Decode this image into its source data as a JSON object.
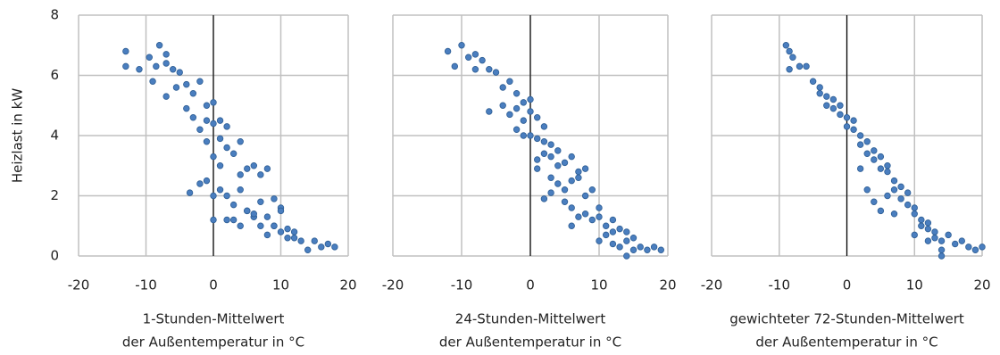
{
  "chart_data": [
    {
      "type": "scatter",
      "ylabel": "Heizlast in kW",
      "xlabel": [
        "1-Stunden-Mittelwert",
        "der Außentemperatur in °C"
      ],
      "color": "#4a7ebf",
      "ytick_labels": true,
      "xlim": [
        -20,
        20
      ],
      "ylim": [
        0,
        8
      ],
      "xticks": [
        -20,
        -10,
        0,
        10,
        20
      ],
      "yticks": [
        0,
        2,
        4,
        6,
        8
      ],
      "grid": true,
      "x": [
        -13,
        -13,
        -11,
        -9.5,
        -8,
        -7,
        -8.5,
        -7,
        -9,
        -6,
        -5,
        -5.5,
        -7,
        -4,
        -3,
        -2,
        -4,
        -3,
        -1,
        -2,
        -1,
        0,
        -1,
        0,
        1,
        2,
        1,
        0,
        -3.5,
        -2,
        -1,
        0,
        1,
        2,
        3,
        4,
        2,
        3,
        5,
        6,
        4,
        5,
        7,
        8,
        3,
        4,
        6,
        7,
        9,
        10,
        2,
        1,
        0,
        5,
        6,
        8,
        9,
        10,
        11,
        12,
        7,
        8,
        10,
        11,
        13,
        14,
        15,
        16,
        17,
        18,
        12,
        9,
        6,
        4
      ],
      "values": [
        6.8,
        6.3,
        6.2,
        6.6,
        7.0,
        6.7,
        6.3,
        6.4,
        5.8,
        6.2,
        6.1,
        5.6,
        5.3,
        5.7,
        5.4,
        5.8,
        4.9,
        4.6,
        4.5,
        4.2,
        5.0,
        5.1,
        3.8,
        4.4,
        4.5,
        4.3,
        3.9,
        3.3,
        2.1,
        2.4,
        2.5,
        2.0,
        2.2,
        3.6,
        3.4,
        3.8,
        2.0,
        1.7,
        2.9,
        3.0,
        2.2,
        1.5,
        2.7,
        2.9,
        1.2,
        1.0,
        1.3,
        1.8,
        1.9,
        1.6,
        1.2,
        3.0,
        1.2,
        1.5,
        1.3,
        1.3,
        1.0,
        1.5,
        0.9,
        0.8,
        1.0,
        0.7,
        0.8,
        0.6,
        0.5,
        0.2,
        0.5,
        0.3,
        0.4,
        0.3,
        0.6,
        1.0,
        1.4,
        2.7
      ]
    },
    {
      "type": "scatter",
      "xlabel": [
        "24-Stunden-Mittelwert",
        "der Außentemperatur in °C"
      ],
      "color": "#4a7ebf",
      "ytick_labels": false,
      "xlim": [
        -20,
        20
      ],
      "ylim": [
        0,
        8
      ],
      "xticks": [
        -20,
        -10,
        0,
        10,
        20
      ],
      "yticks": [
        0,
        2,
        4,
        6,
        8
      ],
      "grid": true,
      "x": [
        -12,
        -11,
        -10,
        -9,
        -8,
        -7,
        -6,
        -8,
        -5,
        -4,
        -3,
        -2,
        -6,
        -4,
        -3,
        -2,
        -1,
        0,
        -1,
        0,
        1,
        2,
        -2,
        -1,
        0,
        1,
        2,
        3,
        4,
        1,
        2,
        3,
        4,
        5,
        6,
        7,
        3,
        4,
        5,
        6,
        7,
        8,
        2,
        3,
        5,
        6,
        8,
        9,
        10,
        7,
        8,
        9,
        10,
        11,
        12,
        11,
        12,
        13,
        14,
        15,
        10,
        12,
        13,
        14,
        15,
        16,
        17,
        18,
        19,
        14,
        1,
        6
      ],
      "values": [
        6.8,
        6.3,
        7.0,
        6.6,
        6.7,
        6.5,
        6.2,
        6.2,
        6.1,
        5.6,
        5.8,
        5.4,
        4.8,
        5.0,
        4.7,
        4.9,
        5.1,
        5.2,
        4.5,
        4.8,
        4.6,
        4.3,
        4.2,
        4.0,
        4.0,
        3.9,
        3.8,
        3.7,
        3.5,
        3.2,
        3.4,
        3.3,
        3.0,
        3.1,
        3.3,
        2.8,
        2.6,
        2.4,
        2.2,
        2.5,
        2.6,
        2.9,
        1.9,
        2.1,
        1.8,
        1.6,
        2.0,
        2.2,
        1.6,
        1.3,
        1.4,
        1.2,
        1.3,
        1.0,
        1.2,
        0.7,
        0.8,
        0.9,
        0.8,
        0.6,
        0.5,
        0.4,
        0.3,
        0.5,
        0.2,
        0.3,
        0.2,
        0.3,
        0.2,
        0.0,
        2.9,
        1.0
      ]
    },
    {
      "type": "scatter",
      "xlabel": [
        "gewichteter 72-Stunden-Mittelwert",
        "der Außentemperatur in °C"
      ],
      "color": "#4a7ebf",
      "ytick_labels": false,
      "xlim": [
        -20,
        20
      ],
      "ylim": [
        0,
        8
      ],
      "xticks": [
        -20,
        -10,
        0,
        10,
        20
      ],
      "yticks": [
        0,
        2,
        4,
        6,
        8
      ],
      "grid": true,
      "x": [
        -9,
        -8.5,
        -8.5,
        -8,
        -7,
        -6,
        -5,
        -4,
        -4,
        -3,
        -3,
        -2,
        -2,
        -1,
        -1,
        0,
        0,
        1,
        1,
        2,
        2,
        3,
        3,
        4,
        4,
        5,
        5,
        6,
        6,
        7,
        7,
        8,
        8,
        9,
        9,
        10,
        10,
        11,
        11,
        12,
        12,
        13,
        13,
        14,
        14,
        15,
        16,
        17,
        18,
        19,
        20,
        3,
        4,
        5,
        6,
        7,
        2,
        10,
        12,
        14
      ],
      "values": [
        7.0,
        6.8,
        6.2,
        6.6,
        6.3,
        6.3,
        5.8,
        5.4,
        5.6,
        5.3,
        5.0,
        5.2,
        4.9,
        4.7,
        5.0,
        4.6,
        4.3,
        4.2,
        4.5,
        4.0,
        3.7,
        3.8,
        3.4,
        3.2,
        3.5,
        2.9,
        3.3,
        2.8,
        3.0,
        2.5,
        2.2,
        2.3,
        1.9,
        2.1,
        1.7,
        1.6,
        1.4,
        1.2,
        1.0,
        1.1,
        0.9,
        0.8,
        0.6,
        0.5,
        0.2,
        0.7,
        0.4,
        0.5,
        0.3,
        0.2,
        0.3,
        2.2,
        1.8,
        1.5,
        2.0,
        1.4,
        2.9,
        0.7,
        0.5,
        0.0
      ]
    }
  ]
}
